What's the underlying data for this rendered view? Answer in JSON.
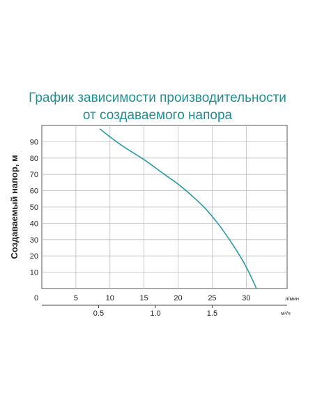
{
  "chart_data": {
    "type": "line",
    "title_lines": [
      "График зависимости производительности",
      "от создаваемого напора"
    ],
    "ylabel": "Создаваемый напор, м",
    "xlabel_primary_unit": "л/мин",
    "xlabel_secondary_unit": "м³/ч",
    "xlim": [
      0,
      36
    ],
    "ylim": [
      0,
      100
    ],
    "x_ticks": [
      0,
      5,
      10,
      15,
      20,
      25,
      30
    ],
    "y_ticks": [
      10,
      20,
      30,
      40,
      50,
      60,
      70,
      80,
      90
    ],
    "secondary_x_ticks": [
      {
        "label": "0.5",
        "lpm": 8.33
      },
      {
        "label": "1.0",
        "lpm": 16.67
      },
      {
        "label": "1.5",
        "lpm": 25
      }
    ],
    "grid": true,
    "series": [
      {
        "color": "#2a9aa5",
        "x": [
          8.5,
          10,
          12,
          15,
          18,
          20,
          22,
          24,
          26,
          28,
          29.5,
          30.5,
          31.5
        ],
        "y": [
          98,
          93,
          87,
          79,
          70,
          64,
          57,
          49,
          39,
          27,
          17,
          9,
          0
        ]
      }
    ]
  }
}
